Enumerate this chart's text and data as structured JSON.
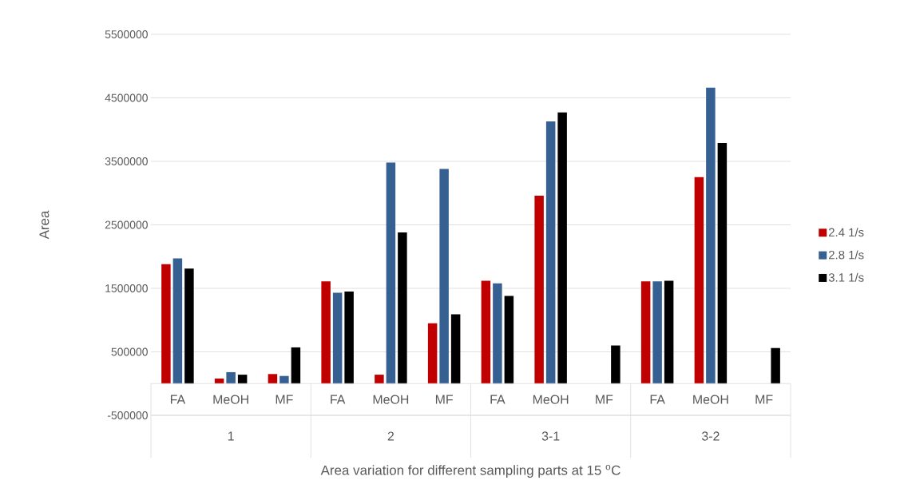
{
  "chart_data": {
    "type": "bar",
    "xlabel": "Area variation for different sampling parts at 15 $^{o}$C",
    "ylabel": "Area",
    "categories": [
      "FA",
      "MeOH",
      "MF",
      "FA",
      "MeOH",
      "MF",
      "FA",
      "MeOH",
      "MF",
      "FA",
      "MeOH",
      "MF"
    ],
    "annotations": [
      "1",
      "2",
      "3-1",
      "3-2"
    ],
    "series": [
      {
        "name": "2.4 1/s",
        "color": "#c00000",
        "values": [
          1880000,
          80000,
          150000,
          1610000,
          140000,
          950000,
          1620000,
          2960000,
          null,
          1610000,
          3250000,
          null
        ]
      },
      {
        "name": "2.8 1/s",
        "color": "#376092",
        "values": [
          1970000,
          180000,
          120000,
          1430000,
          3480000,
          3380000,
          1580000,
          4130000,
          null,
          1610000,
          4660000,
          null
        ]
      },
      {
        "name": "3.1 1/s",
        "color": "#000000",
        "values": [
          1810000,
          140000,
          570000,
          1450000,
          2380000,
          1090000,
          1380000,
          4270000,
          600000,
          1620000,
          3790000,
          560000
        ]
      }
    ],
    "ylim": [
      -500000,
      5500000
    ],
    "yticks": [
      -500000,
      500000,
      1500000,
      2500000,
      3500000,
      4500000,
      5500000
    ],
    "grid": "y",
    "legend": "right"
  }
}
